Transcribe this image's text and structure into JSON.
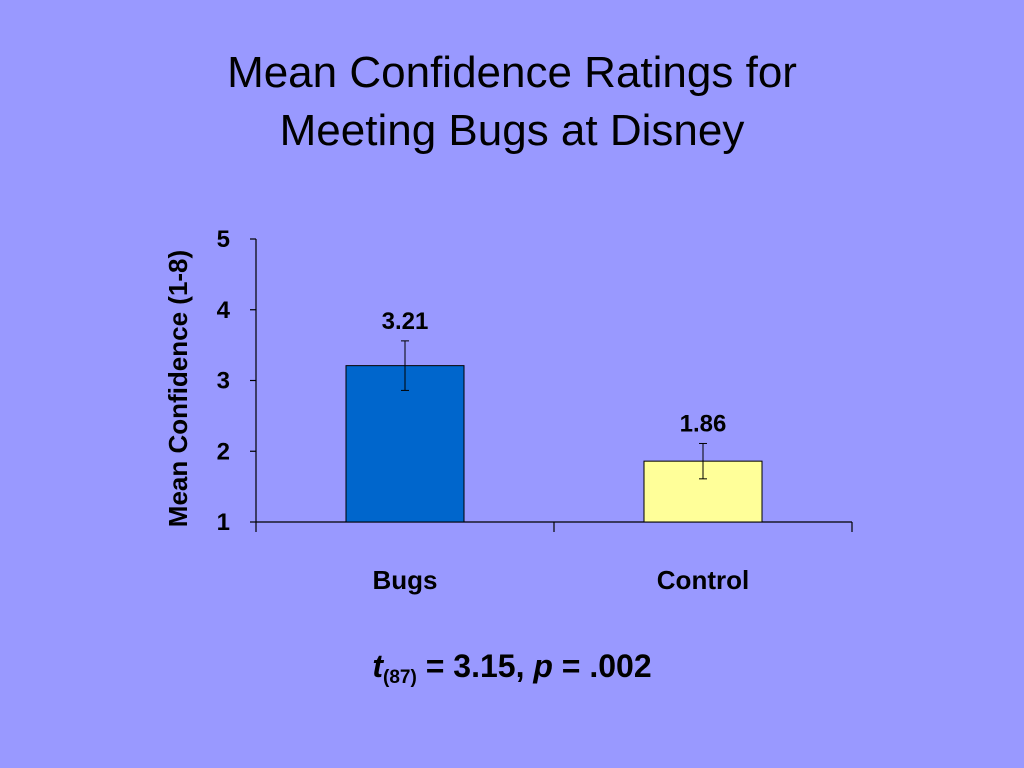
{
  "title": {
    "line1": "Mean Confidence Ratings for",
    "line2": "Meeting Bugs at Disney"
  },
  "chart_data": {
    "type": "bar",
    "categories": [
      "Bugs",
      "Control"
    ],
    "values": [
      3.21,
      1.86
    ],
    "data_labels": [
      "3.21",
      "1.86"
    ],
    "error_bars": [
      [
        2.86,
        3.56
      ],
      [
        1.61,
        2.11
      ]
    ],
    "ylabel": "Mean Confidence (1-8)",
    "xlabel": "",
    "ylim": [
      1,
      5
    ],
    "yticks": [
      "1",
      "2",
      "3",
      "4",
      "5"
    ],
    "grid": false,
    "bar_colors": [
      "#0066cc",
      "#ffff99"
    ]
  },
  "stat": {
    "t": "t",
    "df": "(87)",
    "t_value": "= 3.15,",
    "p": "p",
    "p_value": "= .002"
  }
}
